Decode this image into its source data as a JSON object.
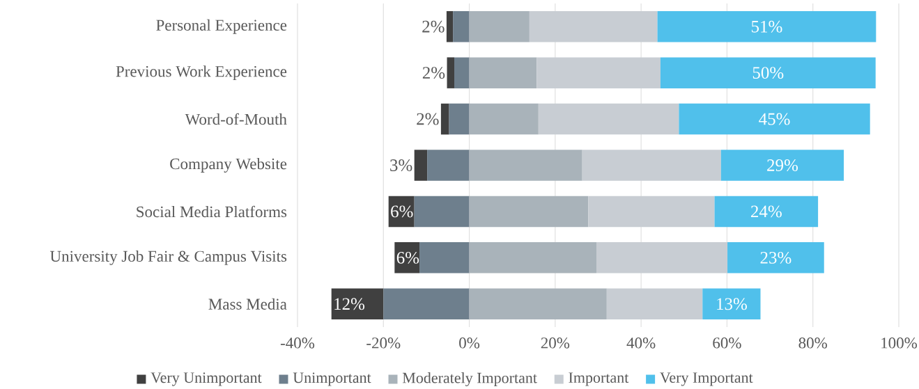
{
  "chart_data": {
    "type": "bar",
    "orientation": "horizontal",
    "categories": [
      "Personal Experience",
      "Previous Work Experience",
      "Word-of-Mouth",
      "Company Website",
      "Social Media Platforms",
      "University Job Fair & Campus Visits",
      "Mass Media"
    ],
    "series": [
      {
        "name": "Very Unimportant",
        "color": "#404040",
        "values": [
          1.5,
          1.7,
          1.9,
          3.0,
          6.0,
          5.8,
          12.1
        ],
        "base": [
          -5.3,
          -5.2,
          -6.6,
          -12.8,
          -18.8,
          -17.4,
          -32.1
        ],
        "value_labels": [
          "2%",
          "2%",
          "2%",
          "3%",
          "6%",
          "6%",
          "12%"
        ]
      },
      {
        "name": "Unimportant",
        "color": "#6e7f8d",
        "values": [
          3.8,
          3.5,
          4.7,
          9.8,
          12.8,
          11.6,
          20.0
        ],
        "base": [
          -3.8,
          -3.5,
          -4.7,
          -9.8,
          -12.8,
          -11.6,
          -20.0
        ]
      },
      {
        "name": "Moderately Important",
        "color": "#a9b3ba",
        "values": [
          14.0,
          15.7,
          16.1,
          26.3,
          27.7,
          29.6,
          32.0
        ],
        "base": [
          0,
          0,
          0,
          0,
          0,
          0,
          0
        ]
      },
      {
        "name": "Important",
        "color": "#c8cdd3",
        "values": [
          29.8,
          28.8,
          32.7,
          32.3,
          29.4,
          30.5,
          22.3
        ],
        "base": [
          14.0,
          15.7,
          16.1,
          26.3,
          27.7,
          29.6,
          32.0
        ]
      },
      {
        "name": "Very Important",
        "color": "#50c0eb",
        "values": [
          50.9,
          50.1,
          44.5,
          28.6,
          24.1,
          22.5,
          13.5
        ],
        "base": [
          43.8,
          44.5,
          48.8,
          58.6,
          57.1,
          60.1,
          54.3
        ],
        "value_labels": [
          "51%",
          "50%",
          "45%",
          "29%",
          "24%",
          "23%",
          "13%"
        ]
      }
    ],
    "xlim": [
      -40,
      100
    ],
    "xticks": [
      {
        "value": -40,
        "label": "-40%"
      },
      {
        "value": -20,
        "label": "-20%"
      },
      {
        "value": 0,
        "label": "0%"
      },
      {
        "value": 20,
        "label": "20%"
      },
      {
        "value": 40,
        "label": "40%"
      },
      {
        "value": 60,
        "label": "60%"
      },
      {
        "value": 80,
        "label": "80%"
      },
      {
        "value": 100,
        "label": "100%"
      }
    ],
    "grid": "x",
    "legend": "bottom",
    "marker": "square"
  }
}
